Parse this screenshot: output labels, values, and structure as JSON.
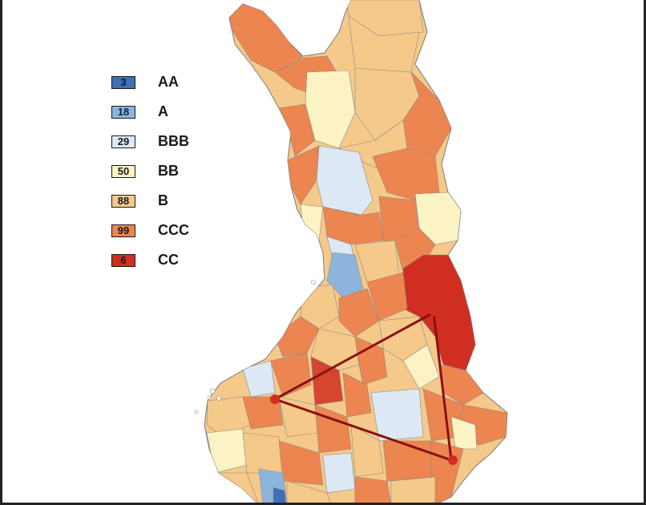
{
  "legend": [
    {
      "count": "3",
      "label": "AA",
      "color": "#3f6fb5",
      "text_color": "#0b1a33"
    },
    {
      "count": "18",
      "label": "A",
      "color": "#8db5dc",
      "text_color": "#10223a"
    },
    {
      "count": "29",
      "label": "BBB",
      "color": "#dce9f4",
      "text_color": "#1a1a1a"
    },
    {
      "count": "50",
      "label": "BB",
      "color": "#fbf3c4",
      "text_color": "#1a1a1a"
    },
    {
      "count": "88",
      "label": "B",
      "color": "#f5c98a",
      "text_color": "#1a1a1a"
    },
    {
      "count": "99",
      "label": "CCC",
      "color": "#ec8550",
      "text_color": "#1a1a1a"
    },
    {
      "count": "6",
      "label": "CC",
      "color": "#cf2e20",
      "text_color": "#1a1a1a"
    }
  ],
  "map": {
    "region": "Finland municipalities",
    "triangle_color": "#8b1010",
    "connected_points": 3
  }
}
